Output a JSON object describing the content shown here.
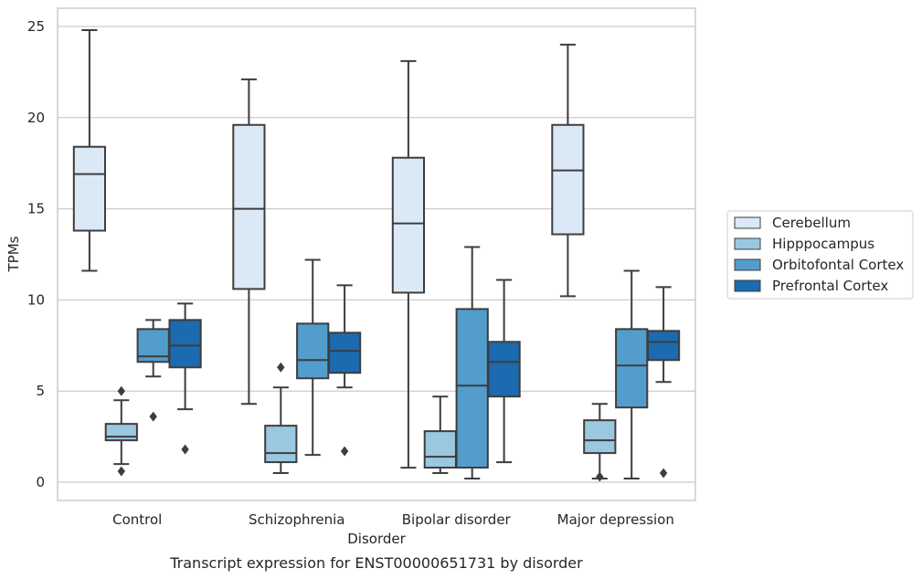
{
  "chart_data": {
    "type": "box",
    "title": "",
    "caption": "Transcript expression for ENST00000651731 by disorder",
    "xlabel": "Disorder",
    "ylabel": "TPMs",
    "ylim": [
      -1,
      26
    ],
    "yticks": [
      0,
      5,
      10,
      15,
      20,
      25
    ],
    "grid": "horizontal",
    "legend_position": "right",
    "categories": [
      "Control",
      "Schizophrenia",
      "Bipolar disorder",
      "Major depression"
    ],
    "series": [
      {
        "name": "Cerebellum",
        "color": "#dbe9f6",
        "boxes": [
          {
            "whislo": 11.6,
            "q1": 13.8,
            "med": 16.9,
            "q3": 18.4,
            "whishi": 24.8,
            "fliers": []
          },
          {
            "whislo": 4.3,
            "q1": 10.6,
            "med": 15.0,
            "q3": 19.6,
            "whishi": 22.1,
            "fliers": []
          },
          {
            "whislo": 0.8,
            "q1": 10.4,
            "med": 14.2,
            "q3": 17.8,
            "whishi": 23.1,
            "fliers": []
          },
          {
            "whislo": 10.2,
            "q1": 13.6,
            "med": 17.1,
            "q3": 19.6,
            "whishi": 24.0,
            "fliers": []
          }
        ]
      },
      {
        "name": "Hipppocampus",
        "color": "#9ac8e0",
        "boxes": [
          {
            "whislo": 1.0,
            "q1": 2.3,
            "med": 2.5,
            "q3": 3.2,
            "whishi": 4.5,
            "fliers": [
              5.0,
              0.6
            ]
          },
          {
            "whislo": 0.5,
            "q1": 1.1,
            "med": 1.6,
            "q3": 3.1,
            "whishi": 5.2,
            "fliers": [
              6.3
            ]
          },
          {
            "whislo": 0.5,
            "q1": 0.8,
            "med": 1.4,
            "q3": 2.8,
            "whishi": 4.7,
            "fliers": []
          },
          {
            "whislo": 0.2,
            "q1": 1.6,
            "med": 2.3,
            "q3": 3.4,
            "whishi": 4.3,
            "fliers": [
              0.3
            ]
          }
        ]
      },
      {
        "name": "Orbitofontal Cortex",
        "color": "#529dcc",
        "boxes": [
          {
            "whislo": 5.8,
            "q1": 6.6,
            "med": 6.9,
            "q3": 8.4,
            "whishi": 8.9,
            "fliers": [
              3.6
            ]
          },
          {
            "whislo": 1.5,
            "q1": 5.7,
            "med": 6.7,
            "q3": 8.7,
            "whishi": 12.2,
            "fliers": []
          },
          {
            "whislo": 0.2,
            "q1": 0.8,
            "med": 5.3,
            "q3": 9.5,
            "whishi": 12.9,
            "fliers": []
          },
          {
            "whislo": 0.2,
            "q1": 4.1,
            "med": 6.4,
            "q3": 8.4,
            "whishi": 11.6,
            "fliers": []
          }
        ]
      },
      {
        "name": "Prefrontal Cortex",
        "color": "#1c6aaf",
        "boxes": [
          {
            "whislo": 4.0,
            "q1": 6.3,
            "med": 7.5,
            "q3": 8.9,
            "whishi": 9.8,
            "fliers": [
              1.8
            ]
          },
          {
            "whislo": 5.2,
            "q1": 6.0,
            "med": 7.2,
            "q3": 8.2,
            "whishi": 10.8,
            "fliers": [
              1.7
            ]
          },
          {
            "whislo": 1.1,
            "q1": 4.7,
            "med": 6.6,
            "q3": 7.7,
            "whishi": 11.1,
            "fliers": []
          },
          {
            "whislo": 5.5,
            "q1": 6.7,
            "med": 7.7,
            "q3": 8.3,
            "whishi": 10.7,
            "fliers": [
              0.5
            ]
          }
        ]
      }
    ]
  }
}
